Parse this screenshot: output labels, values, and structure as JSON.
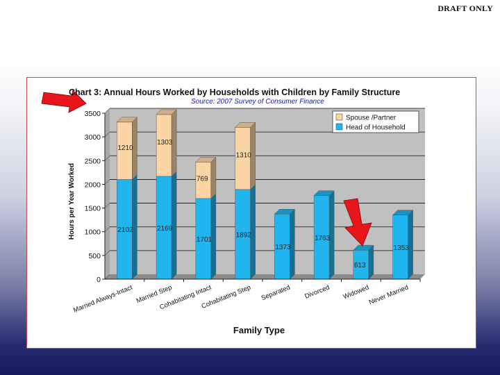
{
  "watermark": "DRAFT ONLY",
  "colors": {
    "frame_border": "#c0504d",
    "plot_bg": "#c0c0c0",
    "spouse": "#fcd5a5",
    "head": "#21b5ef",
    "arrow": "#e8151b"
  },
  "chart_data": {
    "type": "bar",
    "stacked": true,
    "title": "Chart 3: Annual Hours Worked by Households with Children by Family Structure",
    "subtitle": "Source: 2007 Survey of Consumer Finance",
    "xlabel": "Family Type",
    "ylabel": "Hours per Year Worked",
    "ylim": [
      0,
      3500
    ],
    "yticks": [
      0,
      500,
      1000,
      1500,
      2000,
      2500,
      3000,
      3500
    ],
    "ytick_labels": [
      "0",
      "500",
      "1000",
      "1500",
      "2000",
      "2500",
      "3000",
      "3500"
    ],
    "grid": true,
    "legend_position": "top-right",
    "categories": [
      "Married Always-Intact",
      "Married Step",
      "Cohabitating Intact",
      "Cohabitating Step",
      "Separated",
      "Divorced",
      "Widowed",
      "Never Married"
    ],
    "series": [
      {
        "name": "Head of Household",
        "color": "#21b5ef",
        "values": [
          2102,
          2169,
          1701,
          1892,
          1373,
          1763,
          613,
          1353
        ],
        "labels": [
          "2102",
          "2169",
          "1701",
          "1892",
          "1373",
          "1763",
          "613",
          "1353"
        ]
      },
      {
        "name": "Spouse /Partner",
        "color": "#fcd5a5",
        "values": [
          1210,
          1303,
          769,
          1310,
          null,
          null,
          null,
          null
        ],
        "labels": [
          "1210",
          "1303",
          "769",
          "1310",
          "",
          "",
          "",
          ""
        ]
      }
    ],
    "annotations": [
      {
        "type": "arrow",
        "points_to": "chart title"
      },
      {
        "type": "arrow",
        "points_to": "Widowed"
      }
    ]
  }
}
